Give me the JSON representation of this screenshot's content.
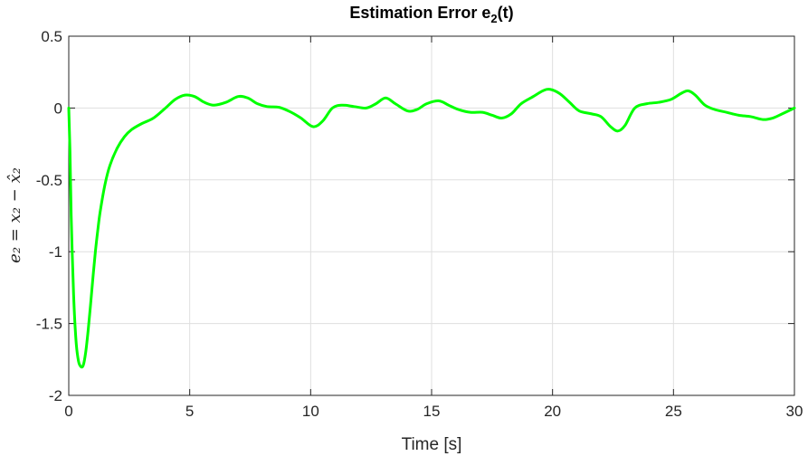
{
  "chart_data": {
    "type": "line",
    "title": "Estimation Error e",
    "title_subscript": "2",
    "title_suffix": "(t)",
    "xlabel": "Time [s]",
    "ylabel": "e₂ = x₂ − x̂₂",
    "xlim": [
      0,
      30
    ],
    "ylim": [
      -2,
      0.5
    ],
    "xticks": [
      0,
      5,
      10,
      15,
      20,
      25,
      30
    ],
    "yticks": [
      0.5,
      0,
      -0.5,
      -1,
      -1.5,
      -2
    ],
    "xtick_labels": [
      "0",
      "5",
      "10",
      "15",
      "20",
      "25",
      "30"
    ],
    "ytick_labels": [
      "0.5",
      "0",
      "-0.5",
      "-1",
      "-1.5",
      "-2"
    ],
    "grid": true,
    "color": "#00ff00",
    "series": [
      {
        "x": [
          0,
          0.05,
          0.1,
          0.2,
          0.3,
          0.4,
          0.5,
          0.6,
          0.7,
          0.8,
          0.9,
          1.0,
          1.1,
          1.2,
          1.3,
          1.5,
          1.7,
          2.0,
          2.3,
          2.6,
          3.0,
          3.5,
          4.0,
          4.4,
          4.8,
          5.2,
          5.6,
          6.0,
          6.5,
          7.0,
          7.4,
          7.8,
          8.2,
          8.7,
          9.2,
          9.6,
          10.1,
          10.5,
          10.9,
          11.3,
          11.8,
          12.3,
          12.7,
          13.1,
          13.5,
          14.0,
          14.4,
          14.8,
          15.3,
          15.7,
          16.1,
          16.6,
          17.1,
          17.5,
          17.9,
          18.3,
          18.7,
          19.2,
          19.6,
          19.9,
          20.3,
          20.7,
          21.1,
          21.6,
          22.0,
          22.4,
          22.7,
          23.0,
          23.4,
          23.9,
          24.4,
          24.9,
          25.3,
          25.6,
          25.9,
          26.3,
          26.7,
          27.2,
          27.7,
          28.2,
          28.7,
          29.1,
          29.5,
          30.0
        ],
        "y": [
          0.0,
          -0.3,
          -0.75,
          -1.3,
          -1.62,
          -1.76,
          -1.8,
          -1.79,
          -1.7,
          -1.55,
          -1.37,
          -1.18,
          -1.0,
          -0.85,
          -0.72,
          -0.53,
          -0.4,
          -0.28,
          -0.2,
          -0.15,
          -0.11,
          -0.07,
          0.0,
          0.06,
          0.09,
          0.08,
          0.04,
          0.02,
          0.04,
          0.08,
          0.07,
          0.03,
          0.01,
          0.005,
          -0.03,
          -0.07,
          -0.13,
          -0.09,
          0.0,
          0.02,
          0.01,
          0.0,
          0.03,
          0.07,
          0.03,
          -0.02,
          -0.01,
          0.03,
          0.05,
          0.02,
          -0.01,
          -0.03,
          -0.03,
          -0.05,
          -0.07,
          -0.04,
          0.03,
          0.08,
          0.12,
          0.13,
          0.1,
          0.04,
          -0.02,
          -0.04,
          -0.06,
          -0.13,
          -0.16,
          -0.12,
          0.0,
          0.03,
          0.04,
          0.06,
          0.1,
          0.12,
          0.09,
          0.02,
          -0.01,
          -0.03,
          -0.05,
          -0.06,
          -0.08,
          -0.07,
          -0.04,
          0.0
        ]
      }
    ]
  }
}
